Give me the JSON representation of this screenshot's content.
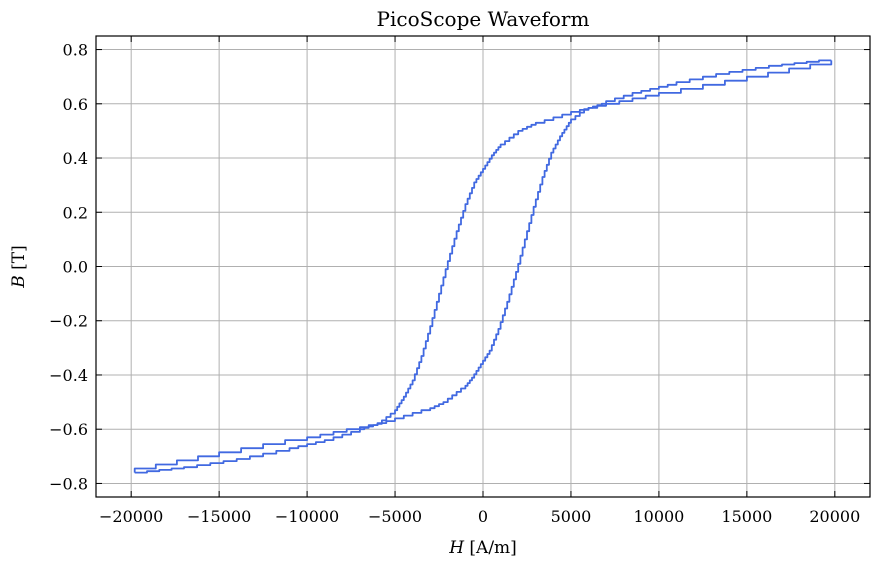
{
  "chart_data": {
    "type": "line",
    "title": "PicoScope Waveform",
    "xlabel": {
      "symbol": "H",
      "unit": " [A/m]"
    },
    "ylabel": {
      "symbol": "B",
      "unit": " [T]"
    },
    "xlim": [
      -22000,
      22000
    ],
    "ylim": [
      -0.85,
      0.85
    ],
    "xticks": [
      -20000,
      -15000,
      -10000,
      -5000,
      0,
      5000,
      10000,
      15000,
      20000
    ],
    "yticks": [
      -0.8,
      -0.6,
      -0.4,
      -0.2,
      0.0,
      0.2,
      0.4,
      0.6,
      0.8
    ],
    "xtick_labels": [
      "−20000",
      "−15000",
      "−10000",
      "−5000",
      "0",
      "5000",
      "10000",
      "15000",
      "20000"
    ],
    "ytick_labels": [
      "−0.8",
      "−0.6",
      "−0.4",
      "−0.2",
      "0.0",
      "0.2",
      "0.4",
      "0.6",
      "0.8"
    ],
    "grid": true,
    "color": "#4169e1",
    "series": [
      {
        "x": [
          -19800,
          -17000,
          -14000,
          -11000,
          -9000,
          -7000,
          -6000,
          -5000,
          -4500,
          -4000,
          -3500,
          -3000,
          -2500,
          -2000,
          -1500,
          -1000,
          -500,
          0,
          500,
          1000,
          2000,
          3000,
          5000,
          7000,
          10000,
          15000,
          19800
        ],
        "y": [
          -0.76,
          -0.74,
          -0.71,
          -0.67,
          -0.64,
          -0.6,
          -0.58,
          -0.53,
          -0.48,
          -0.42,
          -0.33,
          -0.22,
          -0.1,
          0.02,
          0.13,
          0.23,
          0.31,
          0.36,
          0.41,
          0.45,
          0.5,
          0.53,
          0.57,
          0.6,
          0.64,
          0.7,
          0.76
        ]
      },
      {
        "x": [
          19800,
          17000,
          14000,
          11000,
          9000,
          7000,
          6000,
          5000,
          4500,
          4000,
          3500,
          3000,
          2500,
          2000,
          1500,
          1000,
          500,
          0,
          -500,
          -1000,
          -2000,
          -3000,
          -5000,
          -7000,
          -10000,
          -15000,
          -19800
        ],
        "y": [
          0.76,
          0.74,
          0.71,
          0.67,
          0.64,
          0.6,
          0.58,
          0.53,
          0.48,
          0.42,
          0.33,
          0.22,
          0.1,
          -0.02,
          -0.13,
          -0.23,
          -0.31,
          -0.36,
          -0.41,
          -0.45,
          -0.5,
          -0.53,
          -0.57,
          -0.6,
          -0.64,
          -0.7,
          -0.76
        ]
      }
    ]
  }
}
